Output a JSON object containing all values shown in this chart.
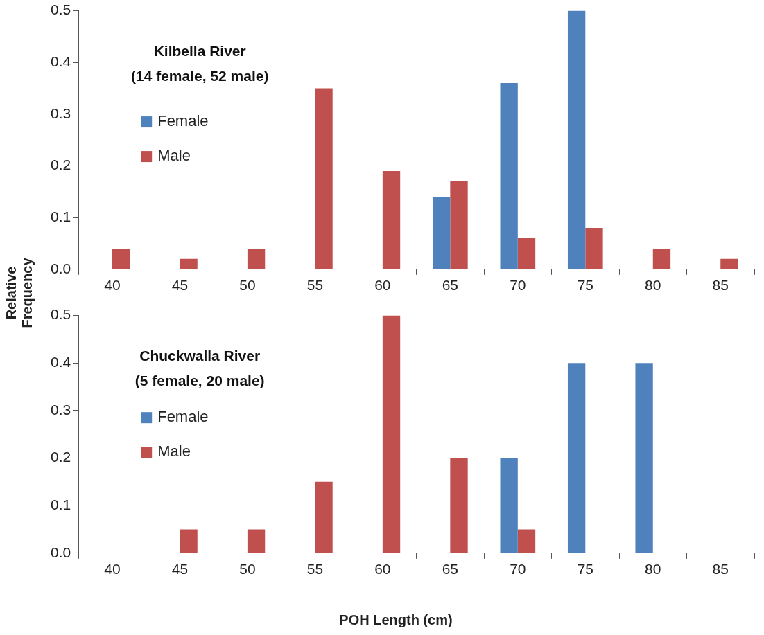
{
  "chart_data": [
    {
      "type": "bar",
      "title": "Kilbella River\n(14 female, 52 male)",
      "ylabel": "Relative Frequency",
      "categories": [
        "40",
        "45",
        "50",
        "55",
        "60",
        "65",
        "70",
        "75",
        "80",
        "85"
      ],
      "series": [
        {
          "name": "Female",
          "color": "#4f81bd",
          "values": [
            0,
            0,
            0,
            0,
            0,
            0.14,
            0.36,
            0.5,
            0,
            0
          ]
        },
        {
          "name": "Male",
          "color": "#c0504d",
          "values": [
            0.04,
            0.02,
            0.04,
            0.35,
            0.19,
            0.17,
            0.06,
            0.08,
            0.04,
            0.02
          ]
        }
      ],
      "ylim": [
        0,
        0.5
      ],
      "yticks": [
        {
          "value": 0,
          "label": "0.0"
        },
        0.1,
        0.2,
        0.3,
        0.4,
        0.5
      ],
      "grid": false,
      "legend": "left"
    },
    {
      "type": "bar",
      "title": "Chuckwalla River\n(5 female, 20 male)",
      "xlabel": "POH Length (cm)",
      "categories": [
        "40",
        "45",
        "50",
        "55",
        "60",
        "65",
        "70",
        "75",
        "80",
        "85"
      ],
      "series": [
        {
          "name": "Female",
          "color": "#4f81bd",
          "values": [
            0,
            0,
            0,
            0,
            0,
            0,
            0.2,
            0.4,
            0.4,
            0
          ]
        },
        {
          "name": "Male",
          "color": "#c0504d",
          "values": [
            0,
            0.05,
            0.05,
            0.15,
            0.5,
            0.2,
            0.05,
            0,
            0,
            0
          ]
        }
      ],
      "ylim": [
        0,
        0.5
      ],
      "yticks": [
        {
          "value": 0,
          "label": "0.0"
        },
        0.1,
        0.2,
        0.3,
        0.4,
        0.5
      ],
      "grid": false,
      "legend": "left"
    }
  ]
}
